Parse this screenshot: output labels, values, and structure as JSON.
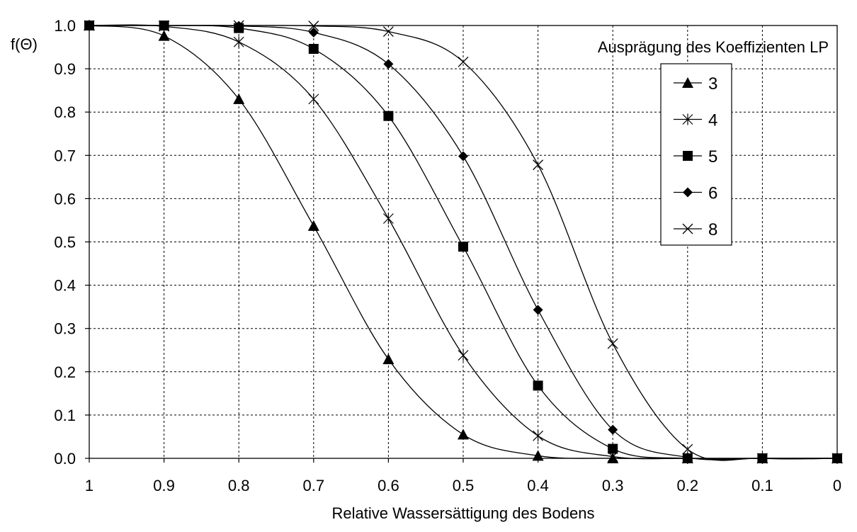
{
  "chart_data": {
    "type": "line",
    "title": "",
    "xlabel": "Relative Wassersättigung des Bodens",
    "ylabel": "f(Θ)",
    "x_reversed": true,
    "xlim": [
      0,
      1
    ],
    "ylim": [
      0,
      1
    ],
    "x_ticks": [
      1,
      0.9,
      0.8,
      0.7,
      0.6,
      0.5,
      0.4,
      0.3,
      0.2,
      0.1,
      0
    ],
    "x_tick_labels": [
      "1",
      "0.9",
      "0.8",
      "0.7",
      "0.6",
      "0.5",
      "0.4",
      "0.3",
      "0.2",
      "0.1",
      "0"
    ],
    "y_ticks": [
      0,
      0.1,
      0.2,
      0.3,
      0.4,
      0.5,
      0.6,
      0.7,
      0.8,
      0.9,
      1.0
    ],
    "y_tick_labels": [
      "0.0",
      "0.1",
      "0.2",
      "0.3",
      "0.4",
      "0.5",
      "0.6",
      "0.7",
      "0.8",
      "0.9",
      "1.0"
    ],
    "grid": true,
    "legend_title": "Ausprägung des Koeffizienten LP",
    "legend_position": "top-right",
    "x": [
      1,
      0.9,
      0.8,
      0.7,
      0.6,
      0.5,
      0.4,
      0.3,
      0.2,
      0.1,
      0
    ],
    "series": [
      {
        "name": "3",
        "marker": "triangle",
        "values": [
          1.0,
          0.976,
          0.83,
          0.537,
          0.229,
          0.055,
          0.006,
          0.0,
          0.0,
          0.0,
          0.0
        ]
      },
      {
        "name": "4",
        "marker": "star",
        "values": [
          1.0,
          0.998,
          0.962,
          0.83,
          0.554,
          0.238,
          0.052,
          0.004,
          0.0,
          0.0,
          0.0
        ]
      },
      {
        "name": "5",
        "marker": "square",
        "values": [
          1.0,
          1.0,
          0.994,
          0.946,
          0.791,
          0.489,
          0.168,
          0.022,
          0.0,
          0.0,
          0.0
        ]
      },
      {
        "name": "6",
        "marker": "diamond",
        "values": [
          1.0,
          1.0,
          0.999,
          0.984,
          0.911,
          0.698,
          0.343,
          0.066,
          0.002,
          0.0,
          0.0
        ]
      },
      {
        "name": "8",
        "marker": "x",
        "values": [
          1.0,
          1.0,
          1.0,
          0.999,
          0.986,
          0.916,
          0.678,
          0.265,
          0.021,
          0.0,
          0.0
        ]
      }
    ]
  }
}
